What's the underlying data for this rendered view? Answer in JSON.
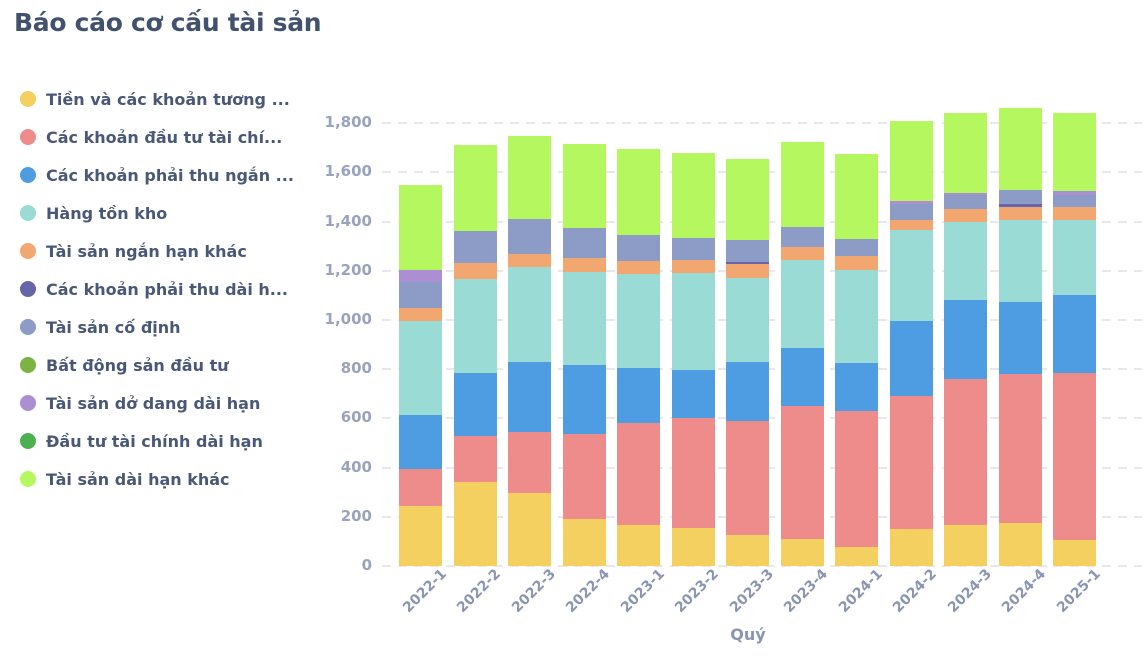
{
  "title": "Báo cáo cơ cấu tài sản",
  "chart_data": {
    "type": "bar",
    "stacked": true,
    "title": "Báo cáo cơ cấu tài sản",
    "xlabel": "Quý",
    "ylabel": "",
    "ylim": [
      0,
      1800
    ],
    "grid": "horizontal-dashed",
    "legend_position": "left",
    "categories": [
      "2022-1",
      "2022-2",
      "2022-3",
      "2022-4",
      "2023-1",
      "2023-2",
      "2023-3",
      "2023-4",
      "2024-1",
      "2024-2",
      "2024-3",
      "2024-4",
      "2025-1"
    ],
    "y_ticks": [
      {
        "v": 0,
        "label": "0"
      },
      {
        "v": 200,
        "label": "200"
      },
      {
        "v": 400,
        "label": "400"
      },
      {
        "v": 600,
        "label": "600"
      },
      {
        "v": 800,
        "label": "800"
      },
      {
        "v": 1000,
        "label": "1,000"
      },
      {
        "v": 1200,
        "label": "1,200"
      },
      {
        "v": 1400,
        "label": "1,400"
      },
      {
        "v": 1600,
        "label": "1,600"
      },
      {
        "v": 1800,
        "label": "1,800"
      }
    ],
    "series": [
      {
        "name": "Tiền và các khoản tương ...",
        "color": "#F3D05F",
        "values": [
          245,
          340,
          295,
          190,
          165,
          155,
          125,
          110,
          75,
          150,
          165,
          175,
          105
        ]
      },
      {
        "name": "Các khoản đầu tư tài chí...",
        "color": "#EE8C8B",
        "values": [
          150,
          190,
          250,
          345,
          415,
          445,
          465,
          540,
          555,
          540,
          595,
          605,
          680
        ]
      },
      {
        "name": "Các khoản phải thu ngắn ...",
        "color": "#4E9DE3",
        "values": [
          220,
          255,
          285,
          280,
          225,
          195,
          240,
          235,
          195,
          305,
          320,
          295,
          315
        ]
      },
      {
        "name": "Hàng tồn kho",
        "color": "#9ADBD5",
        "values": [
          380,
          380,
          385,
          380,
          380,
          395,
          340,
          360,
          380,
          370,
          320,
          330,
          305
        ]
      },
      {
        "name": "Tài sản ngắn hạn khác",
        "color": "#F2A770",
        "values": [
          55,
          65,
          55,
          55,
          55,
          55,
          58,
          50,
          55,
          40,
          50,
          55,
          55
        ]
      },
      {
        "name": "Các khoản phải thu dài h...",
        "color": "#6764A9",
        "values": [
          0,
          0,
          0,
          0,
          0,
          0,
          8,
          0,
          0,
          0,
          0,
          10,
          0
        ]
      },
      {
        "name": "Tài sản cố định",
        "color": "#8D9BC7",
        "values": [
          105,
          130,
          140,
          125,
          105,
          90,
          90,
          85,
          70,
          65,
          60,
          60,
          50
        ]
      },
      {
        "name": "Bất động sản đầu tư",
        "color": "#7CB342",
        "values": [
          0,
          0,
          0,
          0,
          0,
          0,
          0,
          0,
          0,
          0,
          0,
          0,
          0
        ]
      },
      {
        "name": "Tài sản dở dang dài hạn",
        "color": "#AC8ED3",
        "values": [
          50,
          0,
          0,
          0,
          0,
          0,
          0,
          0,
          0,
          15,
          5,
          0,
          13
        ]
      },
      {
        "name": "Đầu tư tài chính dài hạn",
        "color": "#4CAF50",
        "values": [
          0,
          0,
          0,
          0,
          0,
          0,
          0,
          0,
          0,
          0,
          0,
          0,
          0
        ]
      },
      {
        "name": "Tài sản dài hạn khác",
        "color": "#B5F75F",
        "values": [
          345,
          350,
          340,
          340,
          350,
          345,
          330,
          345,
          345,
          325,
          325,
          330,
          317
        ]
      }
    ]
  }
}
